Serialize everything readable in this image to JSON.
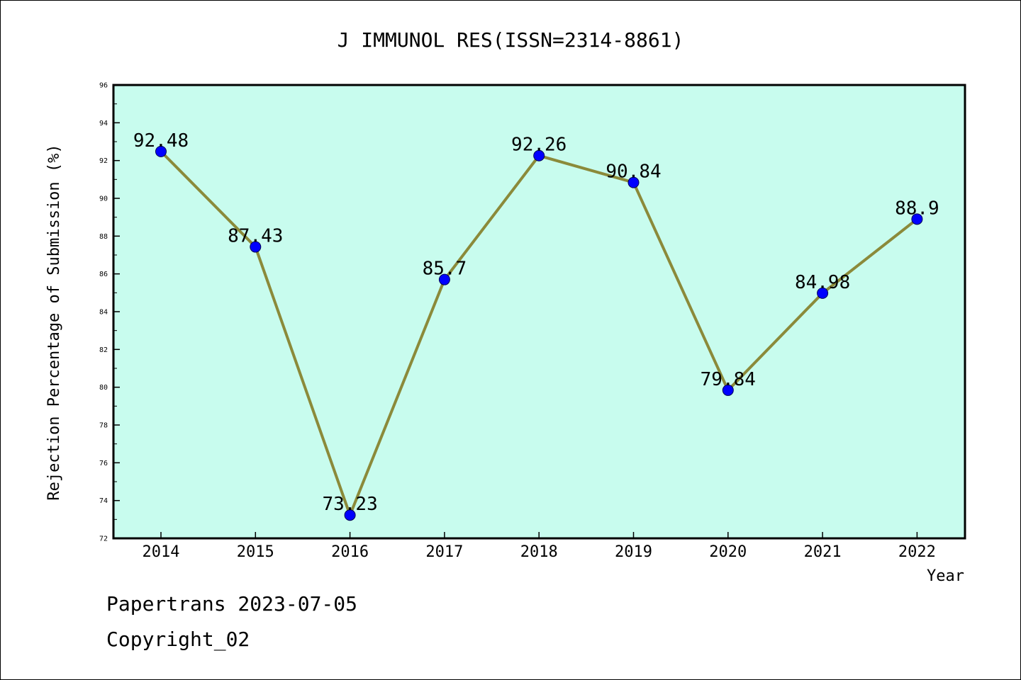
{
  "chart_data": {
    "type": "line",
    "title": "J IMMUNOL RES(ISSN=2314-8861)",
    "xlabel": "Year",
    "ylabel": "Rejection Percentage of Submission (%)",
    "categories": [
      "2014",
      "2015",
      "2016",
      "2017",
      "2018",
      "2019",
      "2020",
      "2021",
      "2022"
    ],
    "values": [
      92.48,
      87.43,
      73.23,
      85.7,
      92.26,
      90.84,
      79.84,
      84.98,
      88.9
    ],
    "data_labels": [
      "92.48",
      "87.43",
      "73.23",
      "85.7",
      "92.26",
      "90.84",
      "79.84",
      "84.98",
      "88.9"
    ],
    "ylim": [
      72,
      96
    ],
    "yticks": [
      "72",
      "74",
      "76",
      "78",
      "80",
      "82",
      "84",
      "86",
      "88",
      "90",
      "92",
      "94",
      "96"
    ],
    "grid": false,
    "colors": {
      "plot_background": "#c8fcee",
      "line": "#8b8a3a",
      "marker": "#0000ff"
    }
  },
  "footer": {
    "line1": "Papertrans 2023-07-05",
    "line2": "Copyright_02"
  }
}
